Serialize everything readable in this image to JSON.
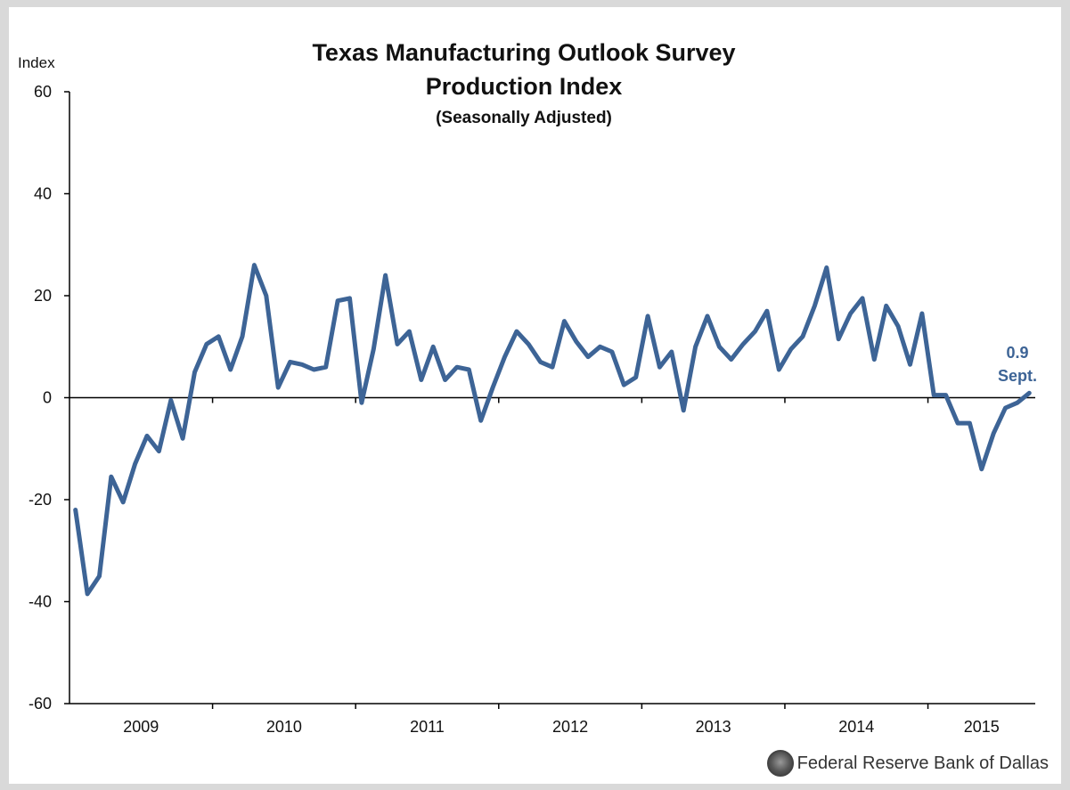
{
  "chart_data": {
    "type": "line",
    "title": "Texas Manufacturing Outlook Survey",
    "subtitle": "Production Index",
    "subtitle2": "(Seasonally Adjusted)",
    "ylabel": "Index",
    "ylim": [
      -60,
      60
    ],
    "yticks": [
      60,
      40,
      20,
      0,
      -20,
      -40,
      -60
    ],
    "xticks": [
      "2009",
      "2010",
      "2011",
      "2012",
      "2013",
      "2014",
      "2015"
    ],
    "grid": false,
    "colors": {
      "series": "#3d6496",
      "annotation": "#3d6496"
    },
    "annotation": {
      "value": "0.9",
      "label": "Sept."
    },
    "series": [
      {
        "values": [
          -22.0,
          -38.5,
          -35.0,
          -15.5,
          -20.5,
          -13.0,
          -7.5,
          -10.5,
          -0.5,
          -8.0,
          5.0,
          10.5,
          12.0,
          5.5,
          12.0,
          26.0,
          20.0,
          2.0,
          7.0,
          6.5,
          5.5,
          6.0,
          19.0,
          19.5,
          -1.0,
          9.5,
          24.0,
          10.5,
          13.0,
          3.5,
          10.0,
          3.5,
          6.0,
          5.5,
          -4.5,
          2.0,
          8.0,
          13.0,
          10.5,
          7.0,
          6.0,
          15.0,
          11.0,
          8.0,
          10.0,
          9.0,
          2.5,
          4.0,
          16.0,
          6.0,
          9.0,
          -2.5,
          10.0,
          16.0,
          10.0,
          7.5,
          10.5,
          13.0,
          17.0,
          5.5,
          9.5,
          12.0,
          18.0,
          25.5,
          11.5,
          16.5,
          19.5,
          7.5,
          18.0,
          14.0,
          6.5,
          16.5,
          0.5,
          0.5,
          -5.0,
          -5.0,
          -14.0,
          -7.0,
          -2.0,
          -1.0,
          0.9
        ]
      }
    ]
  },
  "source": {
    "text": "Federal Reserve Bank of Dallas",
    "icon": "seal-icon"
  }
}
